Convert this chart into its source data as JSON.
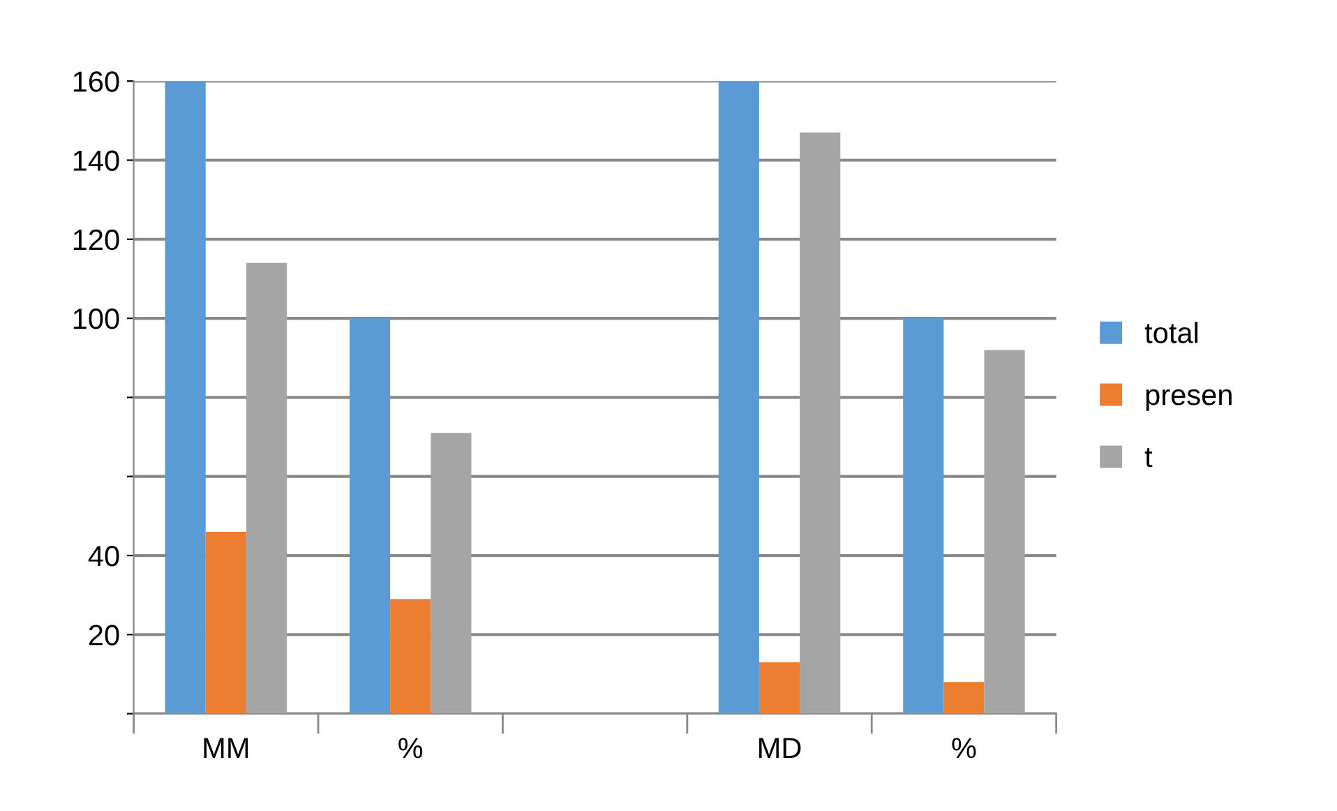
{
  "chart_data": {
    "type": "bar",
    "categories": [
      "MM",
      "%",
      null,
      "MD",
      "%"
    ],
    "series": [
      {
        "name": "total",
        "color": "#5b9bd5",
        "values": [
          160,
          100,
          null,
          160,
          100
        ]
      },
      {
        "name": "presen",
        "color": "#ed7d31",
        "values": [
          46,
          29,
          null,
          13,
          8
        ]
      },
      {
        "name": "t",
        "color": "#a5a5a5",
        "values": [
          114,
          71,
          null,
          147,
          92
        ]
      }
    ],
    "ylim": [
      0,
      160
    ],
    "yticks": [
      {
        "value": 0,
        "label": null
      },
      {
        "value": 20,
        "label": "20"
      },
      {
        "value": 40,
        "label": "40"
      },
      {
        "value": 60,
        "label": null
      },
      {
        "value": 80,
        "label": null
      },
      {
        "value": 100,
        "label": "100"
      },
      {
        "value": 120,
        "label": "120"
      },
      {
        "value": 140,
        "label": "140"
      },
      {
        "value": 160,
        "label": "160"
      }
    ],
    "grid": "y",
    "legend": "right"
  }
}
